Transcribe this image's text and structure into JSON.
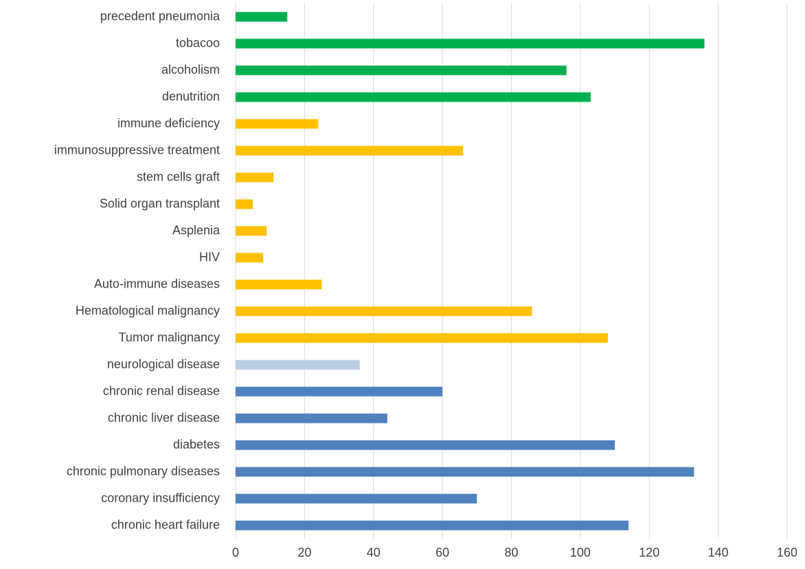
{
  "chart_data": {
    "type": "barh",
    "categories": [
      "chronic heart failure",
      "coronary insufficiency",
      "chronic pulmonary diseases",
      "diabetes",
      "chronic liver disease",
      "chronic renal disease",
      "neurological disease",
      "Tumor malignancy",
      "Hematological malignancy",
      "Auto-immune diseases",
      "HIV",
      "Asplenia",
      "Solid organ transplant",
      "stem cells graft",
      "immunosuppressive treatment",
      "immune deficiency",
      "denutrition",
      "alcoholism",
      "tobacoo",
      "precedent pneumonia"
    ],
    "values": [
      114,
      70,
      133,
      110,
      44,
      60,
      36,
      108,
      86,
      25,
      8,
      9,
      5,
      11,
      66,
      24,
      103,
      96,
      136,
      15
    ],
    "colors": [
      "#4f81bd",
      "#4f81bd",
      "#4f81bd",
      "#4f81bd",
      "#4f81bd",
      "#4f81bd",
      "#b9cde5",
      "#ffc000",
      "#ffc000",
      "#ffc000",
      "#ffc000",
      "#ffc000",
      "#ffc000",
      "#ffc000",
      "#ffc000",
      "#ffc000",
      "#00b050",
      "#00b050",
      "#00b050",
      "#00b050"
    ],
    "xlim": [
      0,
      160
    ],
    "xticks": [
      0,
      20,
      40,
      60,
      80,
      100,
      120,
      140,
      160
    ],
    "grid": true
  }
}
